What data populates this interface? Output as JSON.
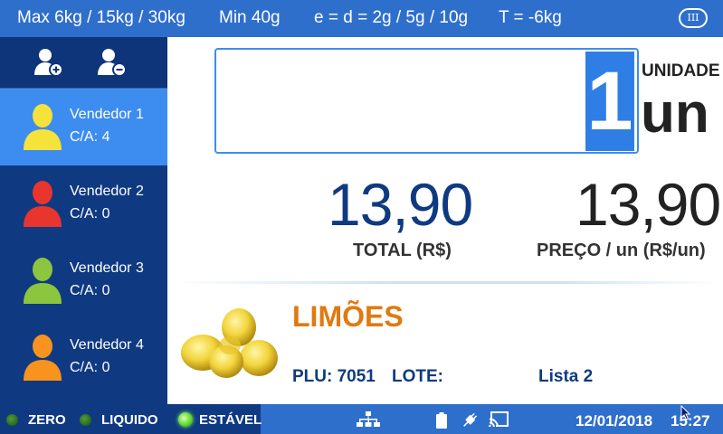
{
  "topbar": {
    "max": "Max 6kg / 15kg / 30kg",
    "min": "Min 40g",
    "division": "e = d = 2g / 5g / 10g",
    "tare": "T = -6kg",
    "class_badge": "III"
  },
  "sidebar": {
    "add_icon": "add-user-icon",
    "remove_icon": "remove-user-icon",
    "sellers": [
      {
        "name": "Vendedor 1",
        "ca": "C/A: 4",
        "color": "#f5e23a",
        "active": true
      },
      {
        "name": "Vendedor 2",
        "ca": "C/A: 0",
        "color": "#e8352d",
        "active": false
      },
      {
        "name": "Vendedor 3",
        "ca": "C/A: 0",
        "color": "#8cc63f",
        "active": false
      },
      {
        "name": "Vendedor 4",
        "ca": "C/A: 0",
        "color": "#f7931e",
        "active": false
      }
    ]
  },
  "display": {
    "quantity": "1",
    "unit_label": "UNIDADE",
    "unit": "un"
  },
  "prices": {
    "total": "13,90",
    "total_label": "TOTAL (R$)",
    "unit_price": "13,90",
    "unit_price_label": "PREÇO / un (R$/un)"
  },
  "product": {
    "name": "LIMÕES",
    "plu": "PLU: 7051",
    "lote": "LOTE:",
    "lista": "Lista 2",
    "image": "lemons-image"
  },
  "statusbar": {
    "zero": "ZERO",
    "liquido": "LIQUIDO",
    "estavel": "ESTÁVEL",
    "date": "12/01/2018",
    "time": "15:27",
    "icons": [
      "network-icon",
      "battery-icon",
      "power-plug-icon",
      "cast-icon"
    ]
  },
  "colors": {
    "bar_blue": "#2f6fcc",
    "navy": "#0f3a82",
    "accent_blue": "#3d8df0",
    "product_orange": "#e07a10"
  }
}
